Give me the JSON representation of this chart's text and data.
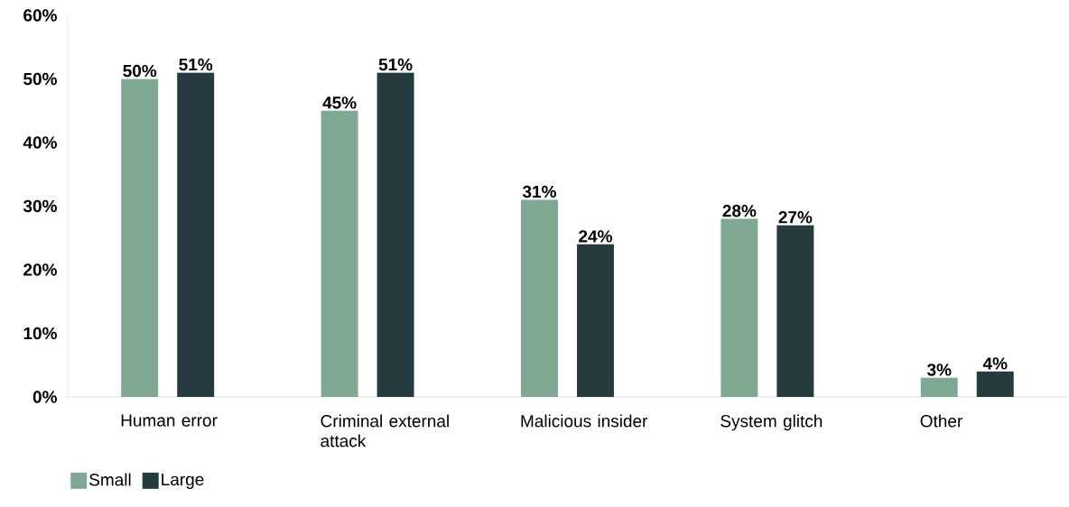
{
  "chart_data": {
    "type": "bar",
    "categories": [
      "Human error",
      "Criminal external attack",
      "Malicious insider",
      "System glitch",
      "Other"
    ],
    "series": [
      {
        "name": "Small",
        "color": "#7fa893",
        "values": [
          50,
          45,
          31,
          28,
          3
        ],
        "value_labels": [
          "50%",
          "45%",
          "31%",
          "28%",
          "3%"
        ]
      },
      {
        "name": "Large",
        "color": "#253b3f",
        "values": [
          51,
          51,
          24,
          27,
          4
        ],
        "value_labels": [
          "51%",
          "51%",
          "24%",
          "27%",
          "4%"
        ]
      }
    ],
    "ylim": [
      0,
      60
    ],
    "yticks": [
      {
        "value": 0,
        "label": "0%"
      },
      {
        "value": 10,
        "label": "10%"
      },
      {
        "value": 20,
        "label": "20%"
      },
      {
        "value": 30,
        "label": "30%"
      },
      {
        "value": 40,
        "label": "40%"
      },
      {
        "value": 50,
        "label": "50%"
      },
      {
        "value": 60,
        "label": "60%"
      }
    ],
    "legend": "bottom left"
  }
}
